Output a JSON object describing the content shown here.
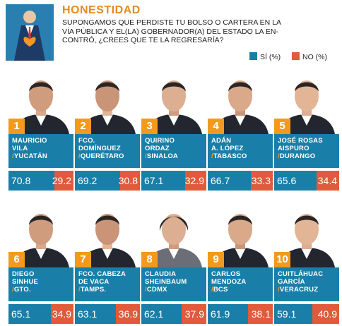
{
  "header": {
    "title": "HONESTIDAD",
    "question_lines": [
      "SUPONGAMOS QUE PERDISTE TU BOLSO O CARTERA EN LA",
      "VÍA PÚBLICA Y EL(LA) GOBERNADOR(A) DEL ESTADO LA EN-",
      "CONTRÓ, ¿CREES QUE TE LA REGRESARÍA?"
    ]
  },
  "legend": {
    "yes": "SÍ (%)",
    "no": "NO (%)"
  },
  "colors": {
    "yes": "#1a7fa8",
    "no": "#e05a3c",
    "rank": "#f39a1e",
    "title": "#e58a1f"
  },
  "chart_data": {
    "type": "bar",
    "title": "HONESTIDAD",
    "series": [
      {
        "name": "SÍ (%)",
        "values": [
          70.8,
          69.2,
          67.1,
          66.7,
          65.6,
          65.1,
          63.1,
          62.1,
          61.9,
          59.1
        ]
      },
      {
        "name": "NO (%)",
        "values": [
          29.2,
          30.8,
          32.9,
          33.3,
          34.4,
          34.9,
          36.9,
          37.9,
          38.1,
          40.9
        ]
      }
    ],
    "items": [
      {
        "rank": "1",
        "name_lines": [
          "MAURICIO",
          "VILA"
        ],
        "state": "YUCATÁN",
        "yes": 70.8,
        "no": 29.2,
        "yes_label": "70.8",
        "no_label": "29.2"
      },
      {
        "rank": "2",
        "name_lines": [
          "FCO.",
          "DOMÍNGUEZ"
        ],
        "state": "QUERÉTARO",
        "yes": 69.2,
        "no": 30.8,
        "yes_label": "69.2",
        "no_label": "30.8"
      },
      {
        "rank": "3",
        "name_lines": [
          "QUIRINO",
          "ORDAZ"
        ],
        "state": "SINALOA",
        "yes": 67.1,
        "no": 32.9,
        "yes_label": "67.1",
        "no_label": "32.9"
      },
      {
        "rank": "4",
        "name_lines": [
          "ADÁN",
          "A. LÓPEZ"
        ],
        "state": "TABASCO",
        "yes": 66.7,
        "no": 33.3,
        "yes_label": "66.7",
        "no_label": "33.3"
      },
      {
        "rank": "5",
        "name_lines": [
          "JOSÉ ROSAS",
          "AISPURO"
        ],
        "state": "DURANGO",
        "yes": 65.6,
        "no": 34.4,
        "yes_label": "65.6",
        "no_label": "34.4"
      },
      {
        "rank": "6",
        "name_lines": [
          "DIEGO",
          "SINHUE"
        ],
        "state": "GTO.",
        "yes": 65.1,
        "no": 34.9,
        "yes_label": "65.1",
        "no_label": "34.9"
      },
      {
        "rank": "7",
        "name_lines": [
          "FCO. CABEZA",
          "DE VACA"
        ],
        "state": "TAMPS.",
        "yes": 63.1,
        "no": 36.9,
        "yes_label": "63.1",
        "no_label": "36.9"
      },
      {
        "rank": "8",
        "name_lines": [
          "CLAUDIA",
          "SHEINBAUM"
        ],
        "state": "CDMX",
        "yes": 62.1,
        "no": 37.9,
        "yes_label": "62.1",
        "no_label": "37.9"
      },
      {
        "rank": "9",
        "name_lines": [
          "CARLOS",
          "MENDOZA"
        ],
        "state": "BCS",
        "yes": 61.9,
        "no": 38.1,
        "yes_label": "61.9",
        "no_label": "38.1"
      },
      {
        "rank": "10",
        "name_lines": [
          "CUITLÁHUAC",
          "GARCÍA"
        ],
        "state": "VERACRUZ",
        "yes": 59.1,
        "no": 40.9,
        "yes_label": "59.1",
        "no_label": "40.9"
      }
    ]
  }
}
